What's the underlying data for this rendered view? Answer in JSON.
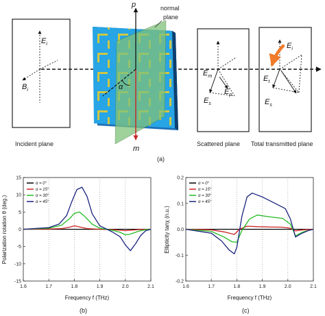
{
  "figure": {
    "panel_labels": {
      "a": "(a)",
      "b": "(b)",
      "c": "(c)"
    },
    "diagram": {
      "incident_plane": "Incident plane",
      "scattered_plane": "Scattered  plane",
      "transmitted_plane": "Total transmitted plane",
      "normal_plane_line1": "normal",
      "normal_plane_line2": "plane",
      "axis_p": "p",
      "axis_m": "m",
      "alpha": "α",
      "E": "E",
      "B": "B",
      "sub_i": "i",
      "sub_m": "m",
      "sub_p": "p",
      "sub_s": "s",
      "sub_t": "t"
    }
  },
  "chart_data": [
    {
      "type": "line",
      "xlabel": "Frequency f (THz)",
      "ylabel": "Polarization rotation θ (deg.)",
      "xlim": [
        1.6,
        2.1
      ],
      "ylim": [
        -15,
        15
      ],
      "xticks": [
        "1.6",
        "1.7",
        "1.8",
        "1.9",
        "2.0",
        "2.1"
      ],
      "yticks": [
        "-15",
        "-10",
        "-5",
        "0",
        "5",
        "10",
        "15"
      ],
      "grid": "dotted-vertical",
      "legend": "top-left",
      "series": [
        {
          "name": "α = 0°",
          "color": "#000000",
          "x": [
            1.6,
            1.7,
            1.75,
            1.8,
            1.85,
            1.9,
            1.95,
            2.0,
            2.05,
            2.1
          ],
          "y": [
            0,
            0,
            0,
            0,
            0,
            0,
            0,
            0,
            0,
            0
          ]
        },
        {
          "name": "α = 15°",
          "color": "#cc2222",
          "x": [
            1.6,
            1.7,
            1.75,
            1.78,
            1.8,
            1.82,
            1.85,
            1.9,
            1.95,
            2.0,
            2.02,
            2.05,
            2.1
          ],
          "y": [
            0,
            0.05,
            0.2,
            0.6,
            1.0,
            0.7,
            0.2,
            0,
            -0.1,
            -0.4,
            -0.3,
            -0.1,
            0
          ]
        },
        {
          "name": "α = 30°",
          "color": "#22bb22",
          "x": [
            1.6,
            1.7,
            1.75,
            1.78,
            1.8,
            1.82,
            1.84,
            1.87,
            1.9,
            1.95,
            1.98,
            2.0,
            2.02,
            2.05,
            2.08,
            2.1
          ],
          "y": [
            0,
            0.3,
            1.2,
            3.0,
            4.6,
            5.0,
            3.8,
            1.5,
            0.3,
            -0.3,
            -0.9,
            -1.6,
            -1.4,
            -0.6,
            -0.1,
            0
          ]
        },
        {
          "name": "α = 45°",
          "color": "#1a237e",
          "x": [
            1.6,
            1.7,
            1.74,
            1.77,
            1.79,
            1.81,
            1.83,
            1.85,
            1.87,
            1.9,
            1.95,
            1.98,
            2.0,
            2.02,
            2.04,
            2.06,
            2.08,
            2.1
          ],
          "y": [
            0,
            0.5,
            1.5,
            4.0,
            8.0,
            11.5,
            12.2,
            9.5,
            4.5,
            1.0,
            -0.8,
            -2.2,
            -4.5,
            -6.2,
            -4.2,
            -1.8,
            -0.4,
            0
          ]
        }
      ]
    },
    {
      "type": "line",
      "xlabel": "Frequency f (THz)",
      "ylabel": "Ellipticity tanχ (n.u.)",
      "xlim": [
        1.6,
        2.1
      ],
      "ylim": [
        -0.2,
        0.2
      ],
      "xticks": [
        "1.6",
        "1.7",
        "1.8",
        "1.9",
        "2.0",
        "2.1"
      ],
      "yticks": [
        "-0.2",
        "-0.1",
        "0.0",
        "0.1",
        "0.2"
      ],
      "grid": "dotted-vertical",
      "legend": "top-left",
      "series": [
        {
          "name": "α = 0°",
          "color": "#000000",
          "x": [
            1.6,
            1.7,
            1.8,
            1.9,
            2.0,
            2.1
          ],
          "y": [
            0,
            0,
            0,
            0,
            0,
            0
          ]
        },
        {
          "name": "α = 15°",
          "color": "#cc2222",
          "x": [
            1.6,
            1.7,
            1.75,
            1.79,
            1.81,
            1.84,
            1.88,
            1.93,
            1.98,
            2.01,
            2.03,
            2.06,
            2.1
          ],
          "y": [
            0,
            -0.002,
            -0.01,
            -0.02,
            0.0,
            0.012,
            0.01,
            0.009,
            0.008,
            0.004,
            -0.006,
            -0.002,
            0
          ]
        },
        {
          "name": "α = 30°",
          "color": "#22bb22",
          "x": [
            1.6,
            1.7,
            1.75,
            1.78,
            1.8,
            1.82,
            1.85,
            1.88,
            1.93,
            1.98,
            2.01,
            2.03,
            2.06,
            2.1
          ],
          "y": [
            0,
            -0.008,
            -0.03,
            -0.048,
            -0.05,
            -0.005,
            0.04,
            0.055,
            0.048,
            0.042,
            0.02,
            -0.025,
            -0.01,
            0
          ]
        },
        {
          "name": "α = 45°",
          "color": "#1a237e",
          "x": [
            1.6,
            1.7,
            1.74,
            1.77,
            1.79,
            1.8,
            1.82,
            1.84,
            1.86,
            1.9,
            1.95,
            1.99,
            2.01,
            2.03,
            2.05,
            2.08,
            2.1
          ],
          "y": [
            0,
            -0.015,
            -0.045,
            -0.08,
            -0.095,
            -0.07,
            0.05,
            0.125,
            0.14,
            0.125,
            0.1,
            0.08,
            0.04,
            -0.03,
            -0.018,
            -0.005,
            0
          ]
        }
      ]
    }
  ]
}
